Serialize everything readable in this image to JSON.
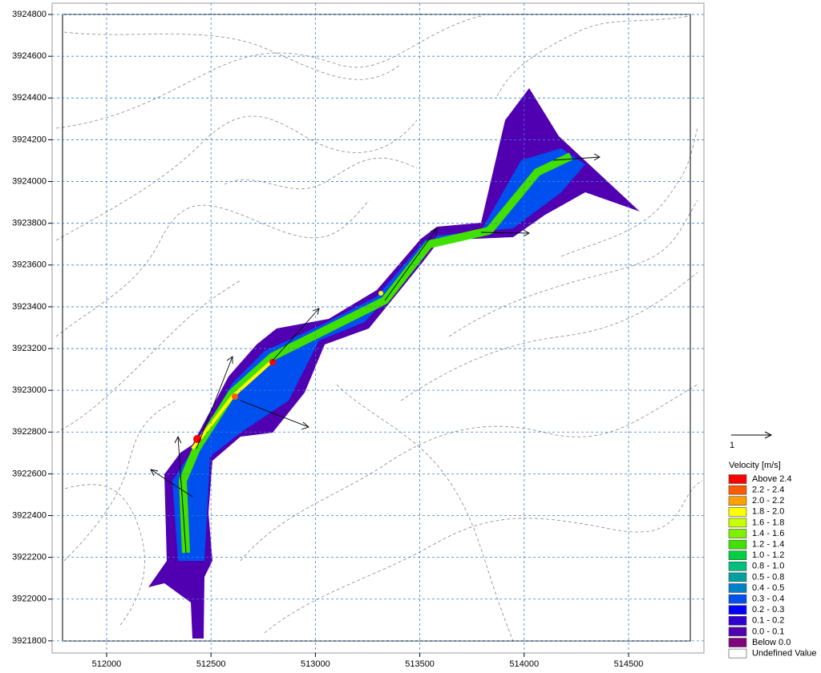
{
  "chart_data": {
    "type": "map",
    "xlim": [
      511739,
      514861
    ],
    "ylim": [
      3921742,
      3924854
    ],
    "xticks": [
      512000,
      512500,
      513000,
      513500,
      514000,
      514500
    ],
    "yticks": [
      3921800,
      3922000,
      3922200,
      3922400,
      3922600,
      3922800,
      3923000,
      3923200,
      3923400,
      3923600,
      3923800,
      3924000,
      3924200,
      3924400,
      3924600,
      3924800
    ],
    "grid": true,
    "grid_color": "#3a7fd0",
    "vector_scale_label": "1",
    "legend": {
      "title": "Velocity [m/s]",
      "items": [
        {
          "label": "Above 2.4",
          "color": "#ff0000"
        },
        {
          "label": "2.2 - 2.4",
          "color": "#ff5a00"
        },
        {
          "label": "2.0 - 2.2",
          "color": "#ffa000"
        },
        {
          "label": "1.8 - 2.0",
          "color": "#ffff00"
        },
        {
          "label": "1.6 - 1.8",
          "color": "#c8ff00"
        },
        {
          "label": "1.4 - 1.6",
          "color": "#80f000"
        },
        {
          "label": "1.2 - 1.4",
          "color": "#40e000"
        },
        {
          "label": "1.0 - 1.2",
          "color": "#00d040"
        },
        {
          "label": "0.8 - 1.0",
          "color": "#00c080"
        },
        {
          "label": "0.5 - 0.8",
          "color": "#00a0a0"
        },
        {
          "label": "0.4 - 0.5",
          "color": "#0080c8"
        },
        {
          "label": "0.3 - 0.4",
          "color": "#0050f0"
        },
        {
          "label": "0.2 - 0.3",
          "color": "#0000ff"
        },
        {
          "label": "0.1 - 0.2",
          "color": "#3000d0"
        },
        {
          "label": "0.0 - 0.1",
          "color": "#5000b0"
        },
        {
          "label": "Below 0.0",
          "color": "#800080"
        },
        {
          "label": "Undefined Value",
          "color": "#ffffff"
        }
      ]
    }
  }
}
